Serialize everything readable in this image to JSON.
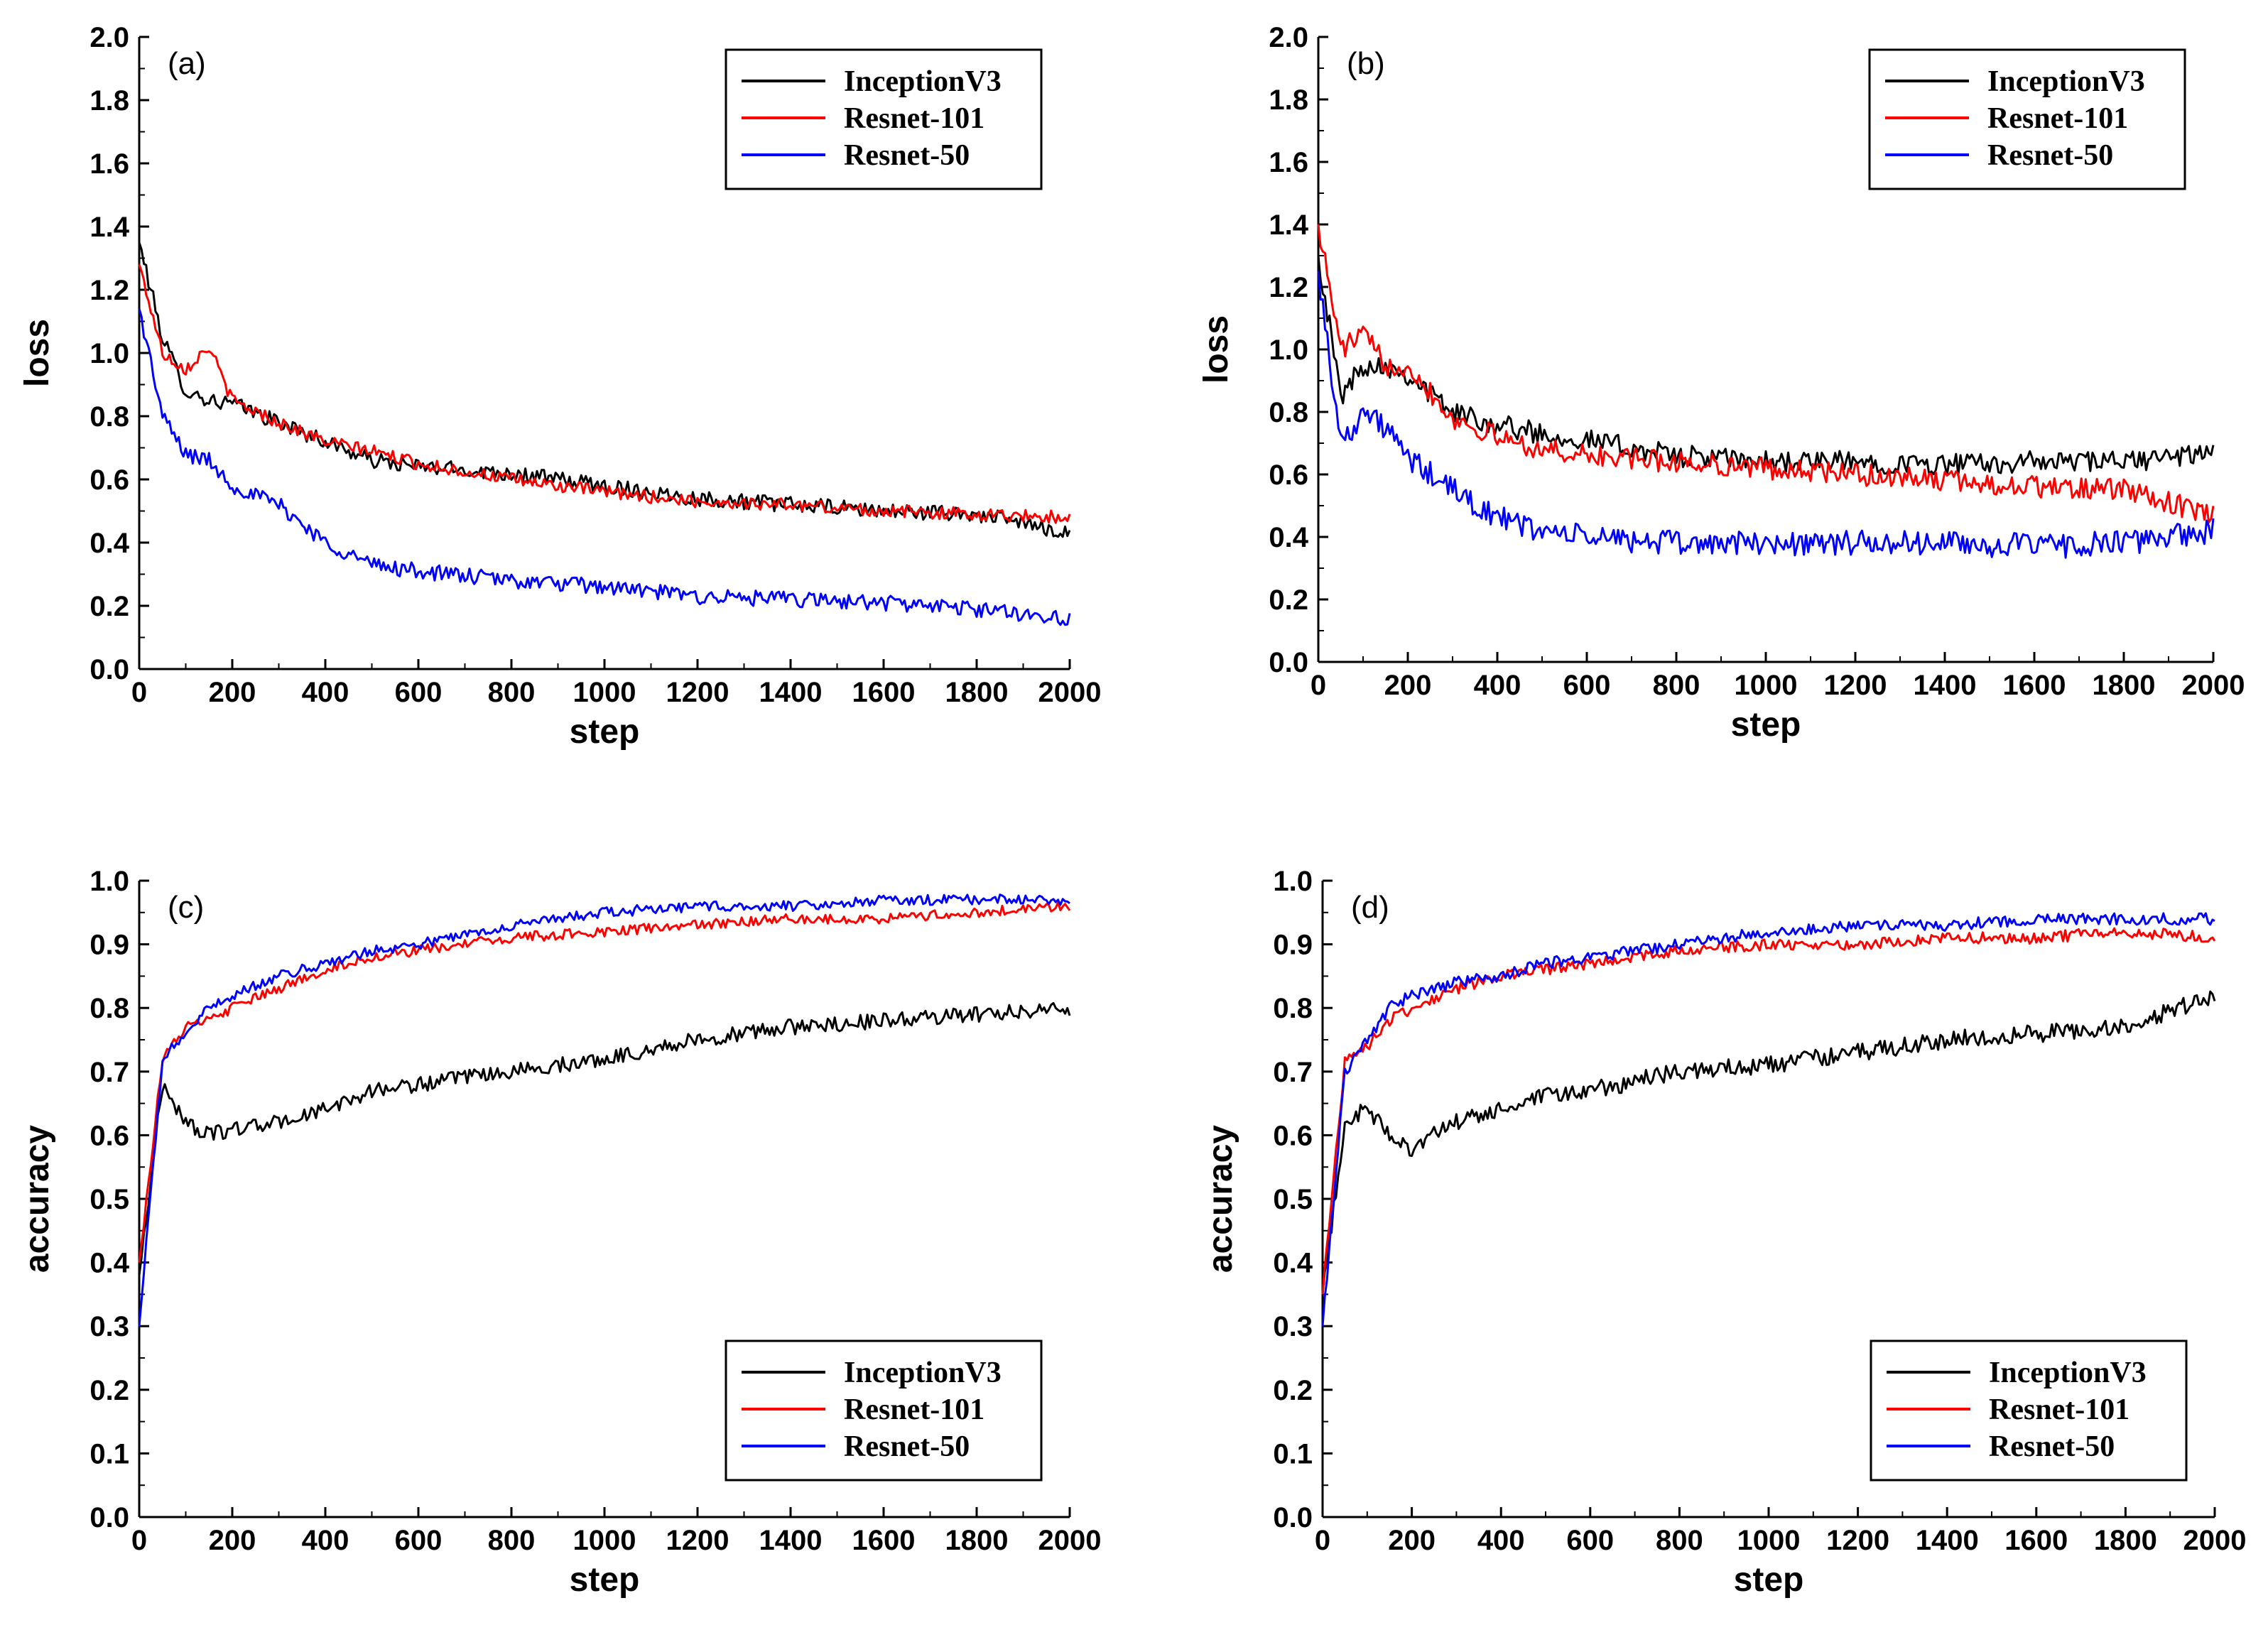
{
  "figure": {
    "legend_entries": [
      "InceptionV3",
      "Resnet-101",
      "Resnet-50"
    ],
    "colors": {
      "InceptionV3": "#000000",
      "Resnet-101": "#ff0000",
      "Resnet-50": "#0000ff"
    }
  },
  "chart_data": [
    {
      "panel": "(a)",
      "type": "line",
      "xlabel": "step",
      "ylabel": "loss",
      "xlim": [
        0,
        2000
      ],
      "ylim": [
        0.0,
        2.0
      ],
      "xticks": [
        0,
        200,
        400,
        600,
        800,
        1000,
        1200,
        1400,
        1600,
        1800,
        2000
      ],
      "yticks": [
        0.0,
        0.2,
        0.4,
        0.6,
        0.8,
        1.0,
        1.2,
        1.4,
        1.6,
        1.8,
        2.0
      ],
      "legend_position": "top-right",
      "x": [
        0,
        50,
        100,
        150,
        200,
        300,
        400,
        500,
        600,
        800,
        1000,
        1200,
        1400,
        1600,
        1800,
        2000
      ],
      "series": [
        {
          "name": "InceptionV3",
          "color": "#000000",
          "noise": 0.025,
          "values": [
            1.35,
            1.05,
            0.88,
            0.85,
            0.84,
            0.78,
            0.72,
            0.66,
            0.64,
            0.62,
            0.58,
            0.54,
            0.52,
            0.5,
            0.49,
            0.43
          ]
        },
        {
          "name": "Resnet-101",
          "color": "#ff0000",
          "noise": 0.02,
          "values": [
            1.28,
            1.0,
            0.95,
            1.02,
            0.85,
            0.78,
            0.72,
            0.69,
            0.65,
            0.6,
            0.56,
            0.53,
            0.52,
            0.5,
            0.49,
            0.48
          ]
        },
        {
          "name": "Resnet-50",
          "color": "#0000ff",
          "noise": 0.025,
          "values": [
            1.14,
            0.8,
            0.68,
            0.66,
            0.58,
            0.52,
            0.4,
            0.33,
            0.31,
            0.28,
            0.26,
            0.23,
            0.22,
            0.21,
            0.19,
            0.16
          ]
        }
      ]
    },
    {
      "panel": "(b)",
      "type": "line",
      "xlabel": "step",
      "ylabel": "loss",
      "xlim": [
        0,
        2000
      ],
      "ylim": [
        0.0,
        2.0
      ],
      "xticks": [
        0,
        200,
        400,
        600,
        800,
        1000,
        1200,
        1400,
        1600,
        1800,
        2000
      ],
      "yticks": [
        0.0,
        0.2,
        0.4,
        0.6,
        0.8,
        1.0,
        1.2,
        1.4,
        1.6,
        1.8,
        2.0
      ],
      "legend_position": "top-right",
      "x": [
        0,
        50,
        100,
        150,
        200,
        300,
        400,
        500,
        600,
        800,
        1000,
        1200,
        1400,
        1600,
        1800,
        2000
      ],
      "series": [
        {
          "name": "InceptionV3",
          "color": "#000000",
          "noise": 0.035,
          "values": [
            1.3,
            0.85,
            0.95,
            0.95,
            0.92,
            0.8,
            0.76,
            0.73,
            0.71,
            0.66,
            0.64,
            0.64,
            0.63,
            0.64,
            0.64,
            0.67
          ]
        },
        {
          "name": "Resnet-101",
          "color": "#ff0000",
          "noise": 0.035,
          "values": [
            1.4,
            1.0,
            1.05,
            0.95,
            0.95,
            0.78,
            0.72,
            0.68,
            0.66,
            0.64,
            0.62,
            0.6,
            0.58,
            0.56,
            0.55,
            0.47
          ]
        },
        {
          "name": "Resnet-50",
          "color": "#0000ff",
          "noise": 0.04,
          "values": [
            1.25,
            0.7,
            0.8,
            0.75,
            0.65,
            0.55,
            0.46,
            0.42,
            0.4,
            0.38,
            0.38,
            0.38,
            0.38,
            0.37,
            0.38,
            0.42
          ]
        }
      ]
    },
    {
      "panel": "(c)",
      "type": "line",
      "xlabel": "step",
      "ylabel": "accuracy",
      "xlim": [
        0,
        2000
      ],
      "ylim": [
        0.0,
        1.0
      ],
      "xticks": [
        0,
        200,
        400,
        600,
        800,
        1000,
        1200,
        1400,
        1600,
        1800,
        2000
      ],
      "yticks": [
        0.0,
        0.1,
        0.2,
        0.3,
        0.4,
        0.5,
        0.6,
        0.7,
        0.8,
        0.9,
        1.0
      ],
      "legend_position": "bottom-right",
      "x": [
        0,
        50,
        100,
        150,
        200,
        300,
        400,
        500,
        600,
        800,
        1000,
        1200,
        1400,
        1600,
        1800,
        2000
      ],
      "series": [
        {
          "name": "InceptionV3",
          "color": "#000000",
          "noise": 0.012,
          "values": [
            0.38,
            0.68,
            0.62,
            0.6,
            0.61,
            0.62,
            0.64,
            0.67,
            0.68,
            0.7,
            0.72,
            0.75,
            0.77,
            0.78,
            0.79,
            0.8
          ]
        },
        {
          "name": "Resnet-101",
          "color": "#ff0000",
          "noise": 0.008,
          "values": [
            0.4,
            0.72,
            0.77,
            0.78,
            0.8,
            0.83,
            0.86,
            0.88,
            0.89,
            0.91,
            0.92,
            0.93,
            0.94,
            0.94,
            0.95,
            0.96
          ]
        },
        {
          "name": "Resnet-50",
          "color": "#0000ff",
          "noise": 0.008,
          "values": [
            0.3,
            0.72,
            0.76,
            0.8,
            0.82,
            0.85,
            0.87,
            0.89,
            0.9,
            0.93,
            0.95,
            0.96,
            0.96,
            0.97,
            0.97,
            0.97
          ]
        }
      ]
    },
    {
      "panel": "(d)",
      "type": "line",
      "xlabel": "step",
      "ylabel": "accuracy",
      "xlim": [
        0,
        2000
      ],
      "ylim": [
        0.0,
        1.0
      ],
      "xticks": [
        0,
        200,
        400,
        600,
        800,
        1000,
        1200,
        1400,
        1600,
        1800,
        2000
      ],
      "yticks": [
        0.0,
        0.1,
        0.2,
        0.3,
        0.4,
        0.5,
        0.6,
        0.7,
        0.8,
        0.9,
        1.0
      ],
      "legend_position": "bottom-right",
      "x": [
        0,
        50,
        100,
        150,
        200,
        300,
        400,
        500,
        600,
        800,
        1000,
        1200,
        1400,
        1600,
        1800,
        2000
      ],
      "series": [
        {
          "name": "InceptionV3",
          "color": "#000000",
          "noise": 0.014,
          "values": [
            0.35,
            0.62,
            0.64,
            0.6,
            0.58,
            0.62,
            0.64,
            0.66,
            0.67,
            0.7,
            0.71,
            0.73,
            0.75,
            0.76,
            0.77,
            0.82
          ]
        },
        {
          "name": "Resnet-101",
          "color": "#ff0000",
          "noise": 0.009,
          "values": [
            0.35,
            0.72,
            0.74,
            0.78,
            0.8,
            0.83,
            0.85,
            0.86,
            0.87,
            0.89,
            0.9,
            0.9,
            0.91,
            0.91,
            0.92,
            0.91
          ]
        },
        {
          "name": "Resnet-50",
          "color": "#0000ff",
          "noise": 0.009,
          "values": [
            0.3,
            0.7,
            0.75,
            0.8,
            0.82,
            0.84,
            0.85,
            0.87,
            0.88,
            0.9,
            0.92,
            0.93,
            0.93,
            0.94,
            0.94,
            0.94
          ]
        }
      ]
    }
  ]
}
